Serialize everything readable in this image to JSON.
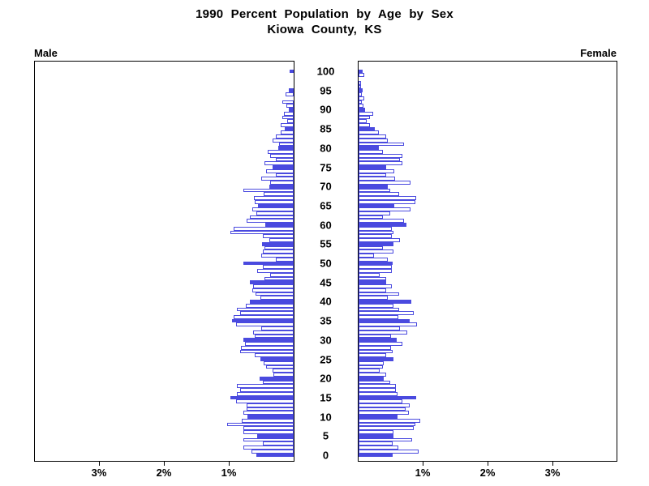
{
  "title": {
    "line1": "1990 Percent Population by Age by Sex",
    "line2": "Kiowa County, KS"
  },
  "chart_data": {
    "type": "bar",
    "subtype": "population-pyramid",
    "title": "1990 Percent Population by Age by Sex",
    "subtitle": "Kiowa County, KS",
    "left_panel_label": "Male",
    "right_panel_label": "Female",
    "unit": "percent of population",
    "age_min": 0,
    "age_max": 100,
    "age_tick_interval": 5,
    "age_tick_labels": [
      "0",
      "5",
      "10",
      "15",
      "20",
      "25",
      "30",
      "35",
      "40",
      "45",
      "50",
      "55",
      "60",
      "65",
      "70",
      "75",
      "80",
      "85",
      "90",
      "95",
      "100"
    ],
    "xlim_percent": [
      0,
      4
    ],
    "x_tick_percents": [
      1,
      2,
      3
    ],
    "male_x_tick_labels": [
      "3%",
      "2%",
      "1%"
    ],
    "female_x_tick_labels": [
      "1%",
      "2%",
      "3%"
    ],
    "solid_bar_every": 5,
    "colors": {
      "bar_blue": "#4a4adf",
      "outline_bar_fill": "#ffffff",
      "axis_black": "#000000",
      "background": "#ffffff"
    },
    "series": [
      {
        "name": "Male",
        "ages": "0-100 ascending",
        "values": [
          0.58,
          0.65,
          0.78,
          0.47,
          0.78,
          0.56,
          0.78,
          0.78,
          1.02,
          0.8,
          0.71,
          0.78,
          0.72,
          0.73,
          0.89,
          0.98,
          0.87,
          0.82,
          0.88,
          0.47,
          0.53,
          0.31,
          0.32,
          0.42,
          0.46,
          0.51,
          0.6,
          0.82,
          0.81,
          0.75,
          0.77,
          0.6,
          0.63,
          0.5,
          0.89,
          0.95,
          0.93,
          0.82,
          0.87,
          0.74,
          0.67,
          0.51,
          0.59,
          0.64,
          0.62,
          0.67,
          0.45,
          0.36,
          0.56,
          0.47,
          0.77,
          0.28,
          0.5,
          0.48,
          0.45,
          0.49,
          0.37,
          0.48,
          0.97,
          0.92,
          0.44,
          0.73,
          0.68,
          0.58,
          0.64,
          0.55,
          0.6,
          0.61,
          0.46,
          0.78,
          0.38,
          0.36,
          0.5,
          0.27,
          0.42,
          0.33,
          0.45,
          0.28,
          0.36,
          0.4,
          0.24,
          0.22,
          0.33,
          0.28,
          0.2,
          0.14,
          0.2,
          0.1,
          0.18,
          0.15,
          0.08,
          0.11,
          0.18,
          0.0,
          0.12,
          0.08,
          0.0,
          0.0,
          0.0,
          0.0,
          0.06
        ]
      },
      {
        "name": "Female",
        "ages": "0-100 ascending",
        "values": [
          0.53,
          0.92,
          0.61,
          0.53,
          0.83,
          0.54,
          0.54,
          0.85,
          0.88,
          0.95,
          0.6,
          0.78,
          0.72,
          0.79,
          0.67,
          0.89,
          0.6,
          0.57,
          0.57,
          0.49,
          0.39,
          0.42,
          0.32,
          0.38,
          0.39,
          0.54,
          0.42,
          0.52,
          0.5,
          0.67,
          0.59,
          0.5,
          0.75,
          0.64,
          0.9,
          0.79,
          0.61,
          0.85,
          0.63,
          0.54,
          0.81,
          0.45,
          0.63,
          0.43,
          0.51,
          0.43,
          0.42,
          0.32,
          0.51,
          0.51,
          0.53,
          0.45,
          0.24,
          0.54,
          0.38,
          0.54,
          0.64,
          0.51,
          0.54,
          0.51,
          0.74,
          0.7,
          0.38,
          0.49,
          0.8,
          0.55,
          0.87,
          0.89,
          0.63,
          0.49,
          0.45,
          0.8,
          0.56,
          0.43,
          0.55,
          0.42,
          0.68,
          0.64,
          0.67,
          0.38,
          0.31,
          0.7,
          0.45,
          0.43,
          0.31,
          0.25,
          0.18,
          0.12,
          0.17,
          0.22,
          0.1,
          0.08,
          0.05,
          0.09,
          0.05,
          0.06,
          0.04,
          0.04,
          0.0,
          0.09,
          0.06
        ]
      }
    ],
    "legend": "solid blue bars mark ages that are multiples of 5; open bars are intermediate single years of age"
  }
}
